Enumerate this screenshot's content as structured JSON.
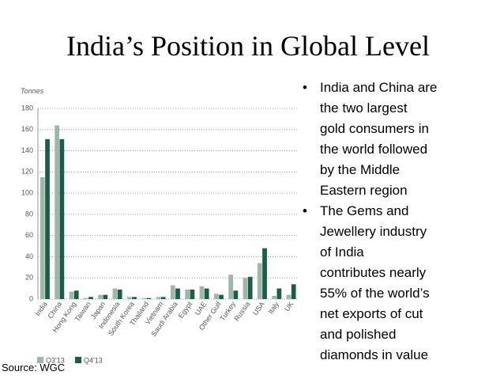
{
  "title": "India’s Position in Global Level",
  "source": "Source: WGC",
  "bullets": [
    [
      "India and China are",
      "the two largest",
      "gold consumers in",
      "the world followed",
      "by the Middle",
      "Eastern region"
    ],
    [
      "The Gems and",
      "Jewellery industry",
      "of India",
      "contributes nearly",
      "55% of the world’s",
      "net exports of cut",
      "and polished",
      "diamonds in value"
    ]
  ],
  "chart_data": {
    "type": "bar",
    "y_label": "Tonnes",
    "categories": [
      "India",
      "China",
      "Hong Kong",
      "Taiwan",
      "Japan",
      "Indonesia",
      "South Korea",
      "Thailand",
      "Vietnam",
      "Saudi Arabia",
      "Egypt",
      "UAE",
      "Other Gulf",
      "Turkey",
      "Russia",
      "USA",
      "Italy",
      "UK"
    ],
    "series": [
      {
        "name": "Q3'13",
        "color": "#9db8a8",
        "values": [
          115,
          164,
          7,
          1,
          4,
          10,
          2,
          1,
          2,
          13,
          9,
          12,
          5,
          23,
          20,
          34,
          3,
          4
        ]
      },
      {
        "name": "Q4'13",
        "color": "#1b5e45",
        "values": [
          151,
          151,
          8,
          2,
          4,
          9,
          2,
          1,
          2,
          10,
          9,
          10,
          4,
          8,
          21,
          48,
          10,
          14
        ]
      }
    ],
    "ylim": [
      0,
      180
    ],
    "yticks": [
      0,
      20,
      40,
      60,
      80,
      100,
      120,
      140,
      160,
      180
    ],
    "grid": true
  }
}
